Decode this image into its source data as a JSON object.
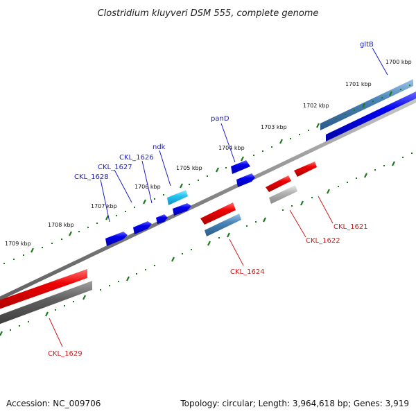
{
  "title": "Clostridium kluyveri DSM 555, complete genome",
  "footer": {
    "accession": "Accession: NC_009706",
    "topology": "Topology: circular; Length: 3,964,618 bp; Genes: 3,919"
  },
  "colors": {
    "backbone": "#808080",
    "forward_gene": "#0000ee",
    "reverse_gene": "#ee0000",
    "selected_forward": "#22c4f0",
    "rna_or_other": "#4a84b8",
    "pseudo_grey": "#b4b4b4",
    "dark_grey": "#606060",
    "tick_green": "#1a7a1a",
    "forward_label": "#1a1ad0",
    "reverse_label": "#d01a1a"
  },
  "kbp_labels": [
    "1700 kbp",
    "1701 kbp",
    "1702 kbp",
    "1703 kbp",
    "1704 kbp",
    "1705 kbp",
    "1706 kbp",
    "1707 kbp",
    "1708 kbp",
    "1709 kbp"
  ],
  "forward_gene_labels": [
    "gltB",
    "panD",
    "ndk",
    "CKL_1626",
    "CKL_1627",
    "CKL_1628"
  ],
  "reverse_gene_labels": [
    "CKL_1621",
    "CKL_1622",
    "CKL_1624",
    "CKL_1629"
  ]
}
